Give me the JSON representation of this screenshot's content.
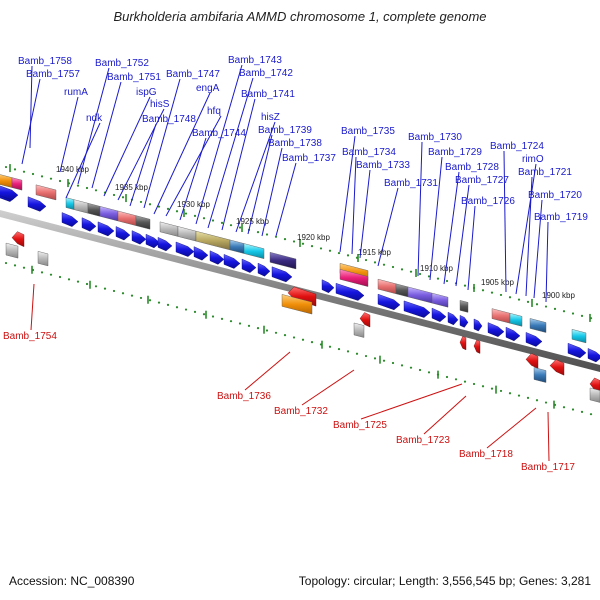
{
  "title": "Burkholderia ambifaria AMMD chromosome 1, complete genome",
  "footer": {
    "accession": "Accession: NC_008390",
    "summary": "Topology: circular; Length: 3,556,545 bp; Genes: 3,281"
  },
  "colors": {
    "top_labels": "#1a1acc",
    "bottom_labels": "#cc1111",
    "forward_gene": "#1515e0",
    "reverse_gene": "#e01010",
    "backbone": "#808080",
    "tick": "#2a8a2a"
  },
  "ticks": [
    "1940 kbp",
    "1935 kbp",
    "1930 kbp",
    "1925 kbp",
    "1920 kbp",
    "1915 kbp",
    "1910 kbp",
    "1905 kbp",
    "1900 kbp"
  ],
  "top_labels": [
    "Bamb_1758",
    "Bamb_1757",
    "rumA",
    "ndk",
    "Bamb_1752",
    "Bamb_1751",
    "ispG",
    "hisS",
    "Bamb_1748",
    "Bamb_1747",
    "engA",
    "hfq",
    "Bamb_1744",
    "Bamb_1743",
    "Bamb_1742",
    "Bamb_1741",
    "hisZ",
    "Bamb_1739",
    "Bamb_1738",
    "Bamb_1737",
    "Bamb_1735",
    "Bamb_1734",
    "Bamb_1733",
    "Bamb_1731",
    "Bamb_1730",
    "Bamb_1729",
    "Bamb_1728",
    "Bamb_1727",
    "Bamb_1726",
    "Bamb_1724",
    "rimO",
    "Bamb_1721",
    "Bamb_1720",
    "Bamb_1719"
  ],
  "bottom_labels": [
    "Bamb_1754",
    "Bamb_1736",
    "Bamb_1732",
    "Bamb_1725",
    "Bamb_1723",
    "Bamb_1718",
    "Bamb_1717"
  ]
}
